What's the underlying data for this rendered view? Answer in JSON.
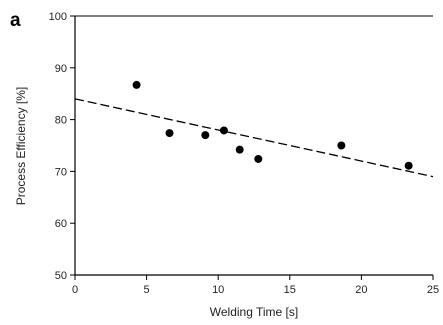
{
  "chart_data": {
    "type": "scatter",
    "panel_label": "a",
    "title": "",
    "xlabel": "Welding Time [s]",
    "ylabel": "Process Efficiency [%]",
    "xlim": [
      0,
      25
    ],
    "ylim": [
      50,
      100
    ],
    "x_ticks": [
      0,
      5,
      10,
      15,
      20,
      25
    ],
    "y_ticks": [
      50,
      60,
      70,
      80,
      90,
      100
    ],
    "grid": false,
    "series": [
      {
        "points": [
          {
            "x": 4.3,
            "y": 86.7
          },
          {
            "x": 6.6,
            "y": 77.4
          },
          {
            "x": 9.1,
            "y": 77.0
          },
          {
            "x": 10.4,
            "y": 77.9
          },
          {
            "x": 11.5,
            "y": 74.2
          },
          {
            "x": 12.8,
            "y": 72.4
          },
          {
            "x": 18.6,
            "y": 75.0
          },
          {
            "x": 23.3,
            "y": 71.1
          }
        ]
      }
    ],
    "trendline": {
      "style": "dashed",
      "x": [
        0,
        25
      ],
      "y": [
        84.0,
        69.0
      ]
    },
    "colors": {
      "marker": "#000000",
      "axis": "#000000",
      "trendline": "#000000"
    }
  }
}
